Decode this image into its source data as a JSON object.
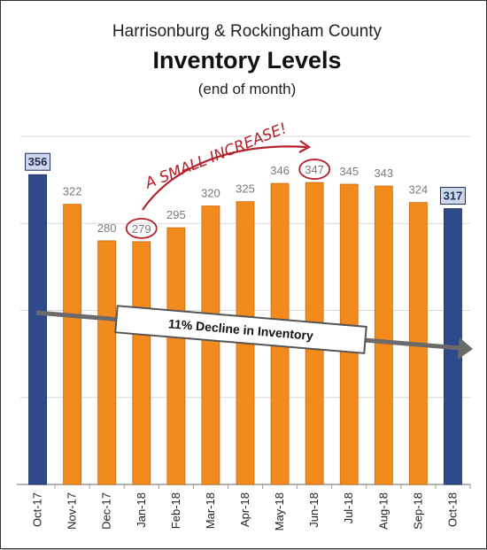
{
  "chart_data": {
    "type": "bar",
    "title": "Harrisonburg & Rockingham County",
    "subtitle": "Inventory Levels",
    "note": "(end of month)",
    "categories": [
      "Oct-17",
      "Nov-17",
      "Dec-17",
      "Jan-18",
      "Feb-18",
      "Mar-18",
      "Apr-18",
      "May-18",
      "Jun-18",
      "Jul-18",
      "Aug-18",
      "Sep-18",
      "Oct-18"
    ],
    "values": [
      356,
      322,
      280,
      279,
      295,
      320,
      325,
      346,
      347,
      345,
      343,
      324,
      317
    ],
    "highlighted_categories": [
      "Oct-17",
      "Oct-18"
    ],
    "circled_categories": [
      "Jan-18",
      "Jun-18"
    ],
    "ylim": [
      0,
      400
    ],
    "grid": true,
    "colors": {
      "bar": "#f28a1e",
      "highlight_bar": "#2e4a8b",
      "highlight_label_box": "#cfd7ea",
      "annotation": "#b3212b",
      "trend_arrow": "#6b6b6b",
      "gridline": "#d9d9d9"
    },
    "annotations": {
      "callout_text": "A SMALL INCREASE!",
      "trend_text": "11% Decline in Inventory"
    }
  }
}
